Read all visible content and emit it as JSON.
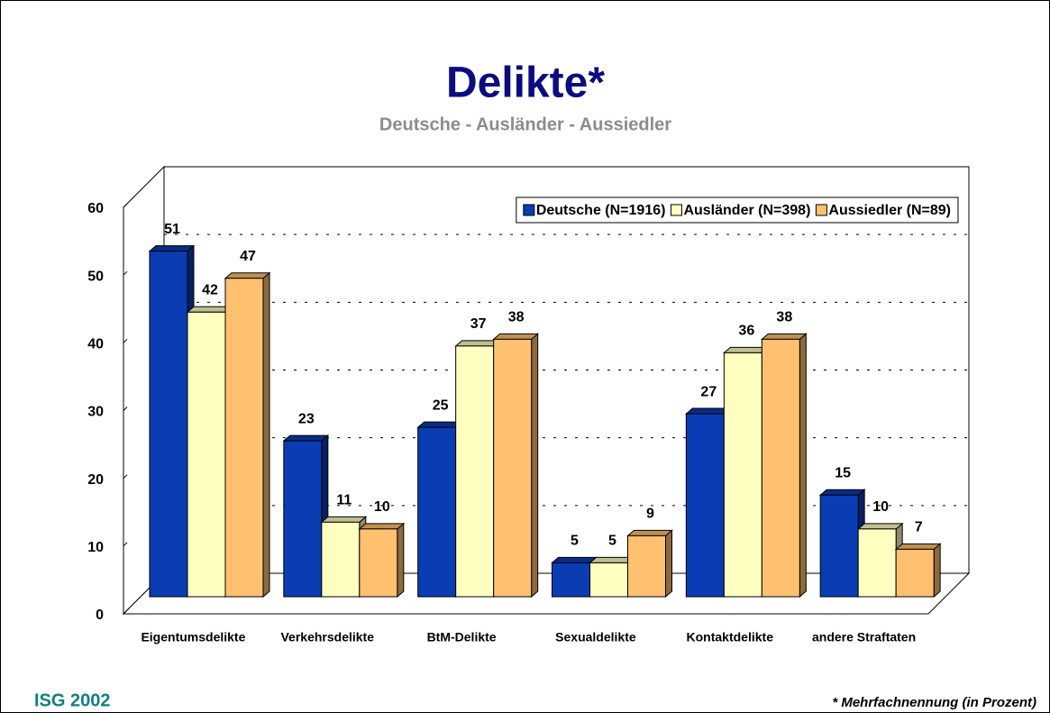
{
  "chart_data": {
    "type": "bar3d",
    "title": "Delikte*",
    "subtitle": "Deutsche - Ausländer - Aussiedler",
    "categories": [
      "Eigentumsdelikte",
      "Verkehrsdelikte",
      "BtM-Delikte",
      "Sexualdelikte",
      "Kontaktdelikte",
      "andere Straftaten"
    ],
    "series": [
      {
        "name": "Deutsche (N=1916)",
        "color": "#0a3cb4",
        "values": [
          51,
          23,
          25,
          5,
          27,
          15
        ]
      },
      {
        "name": "Ausländer (N=398)",
        "color": "#ffffc0",
        "values": [
          42,
          11,
          37,
          5,
          36,
          10
        ]
      },
      {
        "name": "Aussiedler (N=89)",
        "color": "#ffc070",
        "values": [
          47,
          10,
          38,
          9,
          38,
          7
        ]
      }
    ],
    "ylim": [
      0,
      60
    ],
    "yticks": [
      0,
      10,
      20,
      30,
      40,
      50,
      60
    ],
    "grid": true,
    "legend": "top right",
    "source": "ISG 2002",
    "note": "* Mehrfachnennung (in Prozent)"
  }
}
